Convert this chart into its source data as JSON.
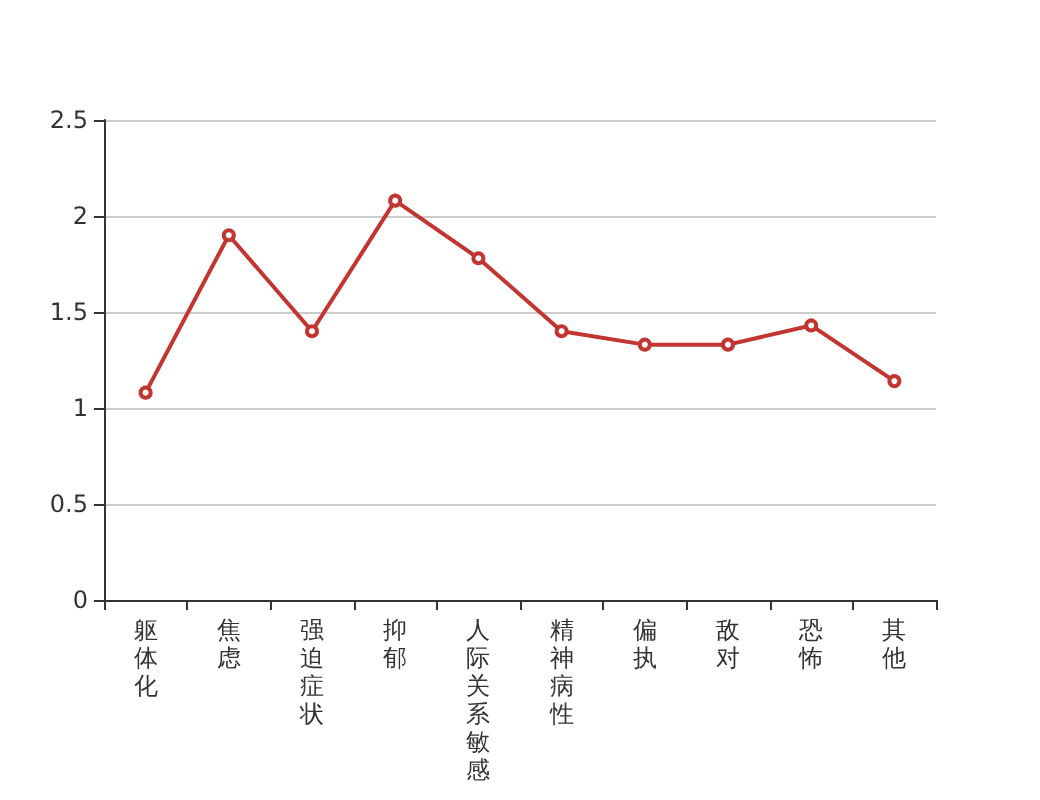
{
  "chart_data": {
    "type": "line",
    "categories": [
      "躯体化",
      "焦虑",
      "强迫症状",
      "抑郁",
      "人际关系敏感",
      "精神病性",
      "偏执",
      "敌对",
      "恐怖",
      "其他"
    ],
    "series": [
      {
        "color": "#c23531",
        "values": [
          1.08,
          1.9,
          1.4,
          2.08,
          1.78,
          1.4,
          1.33,
          1.33,
          1.43,
          1.14
        ]
      }
    ],
    "ylim": [
      0,
      2.5
    ],
    "yticks": [
      0,
      0.5,
      1,
      1.5,
      2,
      2.5
    ],
    "grid": "y",
    "marker": "circle",
    "line_style": "solid"
  }
}
